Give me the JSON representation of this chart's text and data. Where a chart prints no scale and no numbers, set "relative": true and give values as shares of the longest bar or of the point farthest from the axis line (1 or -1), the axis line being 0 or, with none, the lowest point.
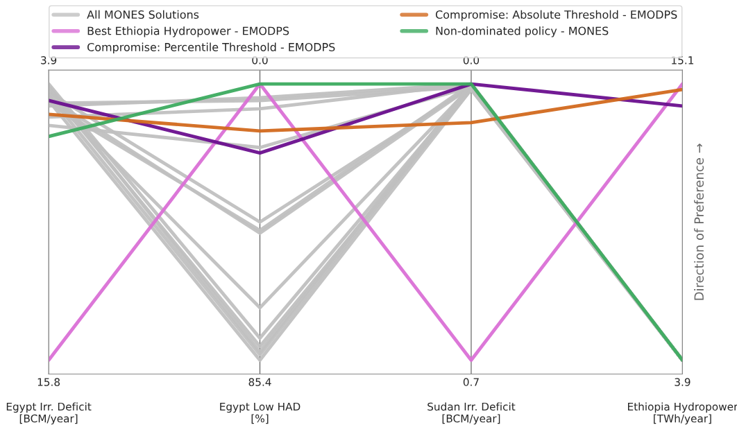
{
  "chart_data": {
    "type": "line",
    "relative": true,
    "grid": "x",
    "tick_labels": "x",
    "legend": "top",
    "line_style": "solid",
    "marker": "none",
    "categories": [
      "Egypt Irr. Deficit\n[BCM/year]",
      "Egypt Low HAD\n[%]",
      "Sudan Irr. Deficit\n[BCM/year]",
      "Ethiopia Hydropower\n[TWh/year]"
    ],
    "ylabel": "Direction of Preference →",
    "series": [
      {
        "name": "All MONES Solutions",
        "color": "#c0c0c0",
        "values": [
          0.92,
          0.95,
          1.0,
          0
        ]
      },
      {
        "color": "#c0c0c0",
        "values": [
          0.93,
          0.94,
          0.99,
          0
        ]
      },
      {
        "color": "#c0c0c0",
        "values": [
          0.88,
          0.91,
          1.0,
          0
        ]
      },
      {
        "color": "#c0c0c0",
        "values": [
          0.85,
          0.77,
          0.99,
          0
        ]
      },
      {
        "color": "#c0c0c0",
        "values": [
          0.97,
          0.5,
          0.99,
          0
        ]
      },
      {
        "color": "#c0c0c0",
        "values": [
          0.95,
          0.46,
          0.99,
          0
        ]
      },
      {
        "color": "#c0c0c0",
        "values": [
          0.93,
          0.47,
          1.0,
          0
        ]
      },
      {
        "color": "#c0c0c0",
        "values": [
          0.96,
          0.19,
          0.99,
          0
        ]
      },
      {
        "color": "#c0c0c0",
        "values": [
          1.0,
          0.08,
          0.99,
          0
        ]
      },
      {
        "color": "#c0c0c0",
        "values": [
          0.98,
          0.05,
          0.98,
          0
        ]
      },
      {
        "color": "#c0c0c0",
        "values": [
          0.96,
          0.02,
          0.99,
          0
        ]
      },
      {
        "color": "#c0c0c0",
        "values": [
          0.94,
          0.0,
          0.98,
          0
        ]
      },
      {
        "color": "#c0c0c0",
        "values": [
          0.99,
          0.03,
          1.0,
          0
        ]
      },
      {
        "name": "Best Ethiopia Hydropower - EMODPS",
        "color": "#da70d6",
        "values": [
          0,
          1,
          0,
          1
        ]
      },
      {
        "name": "Compromise: Percentile Threshold - EMODPS",
        "color": "#6a0f8e",
        "values": [
          0.94,
          0.75,
          1.0,
          0.92
        ]
      },
      {
        "name": "Compromise: Absolute Threshold - EMODPS",
        "color": "#d2691e",
        "values": [
          0.89,
          0.83,
          0.86,
          0.98
        ]
      },
      {
        "name": "Non-dominated policy - MONES",
        "color": "#3cab5f",
        "values": [
          0.81,
          1.0,
          1.0,
          0
        ]
      }
    ],
    "annotations": [
      "3.9",
      "0.0",
      "0.0",
      "15.1",
      "15.8",
      "85.4",
      "0.7",
      "3.9"
    ]
  }
}
